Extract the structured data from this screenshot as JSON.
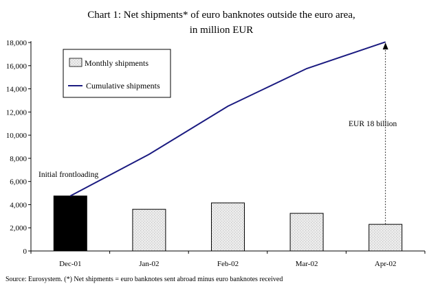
{
  "chart_data": {
    "type": "bar",
    "title_line1": "Chart 1: Net shipments* of euro banknotes outside the euro area,",
    "title_line2": "in million EUR",
    "categories": [
      "Dec-01",
      "Jan-02",
      "Feb-02",
      "Mar-02",
      "Apr-02"
    ],
    "ylim": [
      0,
      18000
    ],
    "yticks": [
      0,
      2000,
      4000,
      6000,
      8000,
      10000,
      12000,
      14000,
      16000,
      18000
    ],
    "ytick_labels": [
      "0",
      "2,000",
      "4,000",
      "6,000",
      "8,000",
      "10,000",
      "12,000",
      "14,000",
      "16,000",
      "18,000"
    ],
    "grid": false,
    "legend_position": "top-left",
    "series": [
      {
        "name": "Monthly shipments",
        "kind": "bar",
        "values": [
          4750,
          3600,
          4150,
          3250,
          2300
        ],
        "colors": [
          "#000000",
          "#e6e6e6",
          "#e6e6e6",
          "#e6e6e6",
          "#e6e6e6"
        ]
      },
      {
        "name": "Cumulative shipments",
        "kind": "line",
        "values": [
          4750,
          8350,
          12500,
          15750,
          18050
        ],
        "color": "#1a1a80"
      }
    ],
    "annotations": [
      {
        "text": "Initial frontloading",
        "category": "Dec-01"
      },
      {
        "text": "EUR 18 billion",
        "category": "Apr-02"
      }
    ],
    "source": "Source: Eurosystem. (*) Net shipments = euro banknotes sent abroad minus euro banknotes received"
  }
}
